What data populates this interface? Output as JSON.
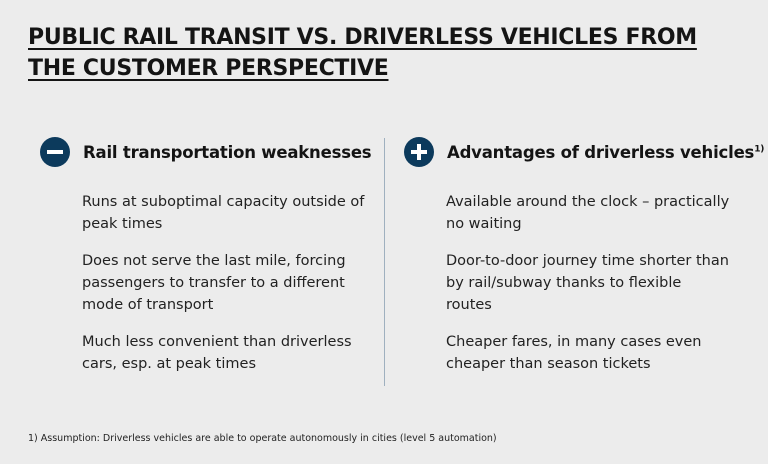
{
  "title": "PUBLIC RAIL TRANSIT VS. DRIVERLESS VEHICLES FROM THE CUSTOMER PERSPECTIVE",
  "left": {
    "icon": "minus-circle-icon",
    "heading": "Rail transportation weaknesses",
    "items": [
      "Runs at suboptimal capacity outside of peak times",
      "Does not serve the last mile, forcing passengers to transfer to a different mode of transport",
      "Much less convenient than driverless cars, esp. at peak times"
    ]
  },
  "right": {
    "icon": "plus-circle-icon",
    "heading": "Advantages of driverless vehicles",
    "heading_note": "1)",
    "items": [
      "Available around the clock – practically no waiting",
      "Door-to-door journey time shorter than by rail/subway thanks to flexible routes",
      "Cheaper fares, in many cases even cheaper than season tickets"
    ]
  },
  "footnote": "1) Assumption: Driverless vehicles are able to operate autonomously in cities (level 5 automation)",
  "colors": {
    "background": "#ececec",
    "icon": "#0c3a5c",
    "divider": "#9fb0bf"
  }
}
